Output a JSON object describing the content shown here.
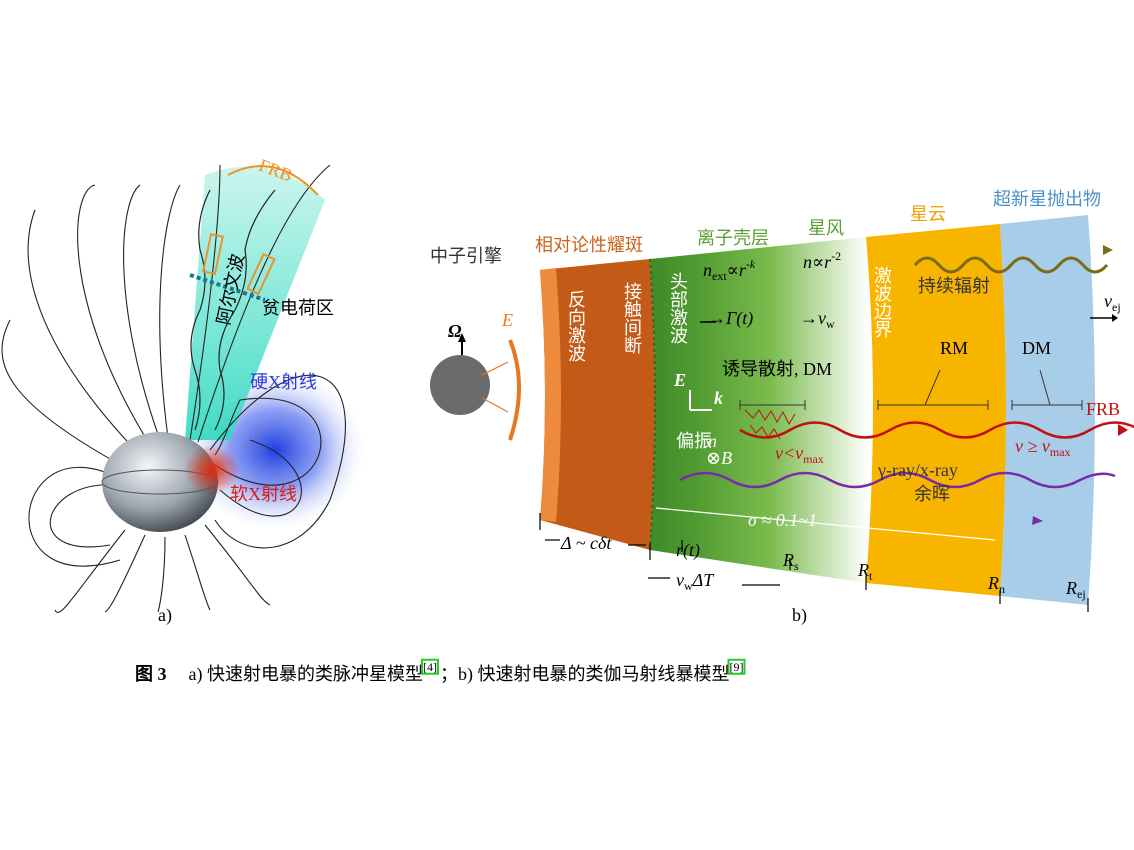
{
  "panel_a": {
    "label": "a)",
    "frb": "FRB",
    "alfven_wave": "阿尔文波",
    "charge_depleted": "贫电荷区",
    "hard_xray": "硬X射线",
    "soft_xray": "软X射线"
  },
  "panel_b": {
    "label": "b)",
    "engine": "中子引擎",
    "omega": "Ω",
    "e_field": "E",
    "regions": {
      "flare": "相对论性耀斑",
      "ion_shell": "离子壳层",
      "wind": "星风",
      "nebula": "星云",
      "ejecta": "超新星抛出物"
    },
    "reverse_shock": "反向激波",
    "contact_discontinuity": "接触间断",
    "forward_shock": "头部激波",
    "shock_boundary": "激波边界",
    "persistent_radiation": "持续辐射",
    "n_ext_law": {
      "n": "n",
      "sub": "ext",
      "prop": "∝r",
      "sup": "-k"
    },
    "n_law": {
      "n": "n",
      "prop": "∝r",
      "sup": "-2"
    },
    "lorentz": "→Γ(t)",
    "v_w": {
      "arrow": "→",
      "v": "v",
      "sub": "w"
    },
    "v_ej": {
      "v": "v",
      "sub": "ej"
    },
    "induced_scattering": "诱导散射, DM",
    "e_vec": "E",
    "k_vec": "k",
    "polarization": "偏振",
    "n_vec": "n",
    "b_field": "⊗B",
    "v_lt": {
      "v": "v<v",
      "sub": "max"
    },
    "v_ge": {
      "v": "v ≥ v",
      "sub": "max"
    },
    "rm": "RM",
    "dm": "DM",
    "frb": "FRB",
    "afterglow_1": "γ-ray/x-ray",
    "afterglow_2": "余晖",
    "sigma": "σ ≈ 0.1~1",
    "delta": "Δ ~ cδt",
    "r_t": "r(t)",
    "R_s": {
      "R": "R",
      "sub": "s"
    },
    "R_t": {
      "R": "R",
      "sub": "t"
    },
    "R_n": {
      "R": "R",
      "sub": "n"
    },
    "R_ej": {
      "R": "R",
      "sub": "ej"
    },
    "vw_dt": {
      "v": "v",
      "sub": "w",
      "rest": "ΔT"
    }
  },
  "caption": {
    "number": "图 3",
    "part_a": "a) 快速射电暴的类脉冲星模型",
    "ref_a": "[4]",
    "sep": "；",
    "part_b": "b) 快速射电暴的类伽马射线暴模型",
    "ref_b": "[9]"
  }
}
